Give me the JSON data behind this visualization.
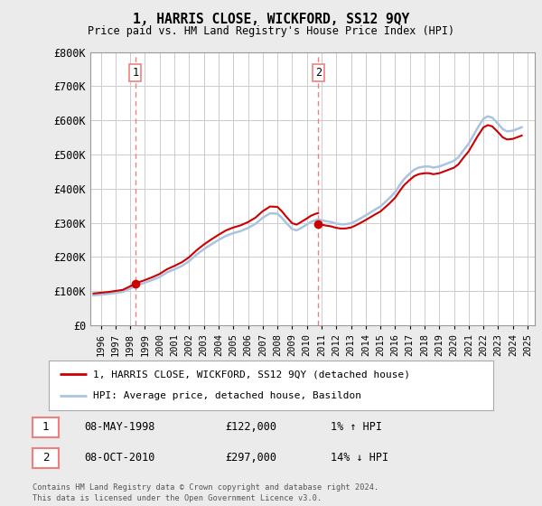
{
  "title": "1, HARRIS CLOSE, WICKFORD, SS12 9QY",
  "subtitle": "Price paid vs. HM Land Registry's House Price Index (HPI)",
  "legend_line1": "1, HARRIS CLOSE, WICKFORD, SS12 9QY (detached house)",
  "legend_line2": "HPI: Average price, detached house, Basildon",
  "sale1_date": "08-MAY-1998",
  "sale1_price": "£122,000",
  "sale1_hpi": "1% ↑ HPI",
  "sale2_date": "08-OCT-2010",
  "sale2_price": "£297,000",
  "sale2_hpi": "14% ↓ HPI",
  "footnote1": "Contains HM Land Registry data © Crown copyright and database right 2024.",
  "footnote2": "This data is licensed under the Open Government Licence v3.0.",
  "hpi_color": "#aac4e0",
  "price_color": "#cc0000",
  "sale_marker_color": "#cc0000",
  "vline_color": "#f08080",
  "bg_color": "#ebebeb",
  "plot_bg_color": "#ffffff",
  "grid_color": "#cccccc",
  "ylim": [
    0,
    800000
  ],
  "yticks": [
    0,
    100000,
    200000,
    300000,
    400000,
    500000,
    600000,
    700000,
    800000
  ],
  "ytick_labels": [
    "£0",
    "£100K",
    "£200K",
    "£300K",
    "£400K",
    "£500K",
    "£600K",
    "£700K",
    "£800K"
  ],
  "sale1_x": 1998.35,
  "sale1_y": 122000,
  "sale2_x": 2010.77,
  "sale2_y": 297000,
  "xmin": 1995.3,
  "xmax": 2025.5,
  "xticks": [
    1996,
    1997,
    1998,
    1999,
    2000,
    2001,
    2002,
    2003,
    2004,
    2005,
    2006,
    2007,
    2008,
    2009,
    2010,
    2011,
    2012,
    2013,
    2014,
    2015,
    2016,
    2017,
    2018,
    2019,
    2020,
    2021,
    2022,
    2023,
    2024,
    2025
  ],
  "years_hpi": [
    1995.5,
    1996.0,
    1996.5,
    1997.0,
    1997.5,
    1998.0,
    1998.5,
    1999.0,
    1999.5,
    2000.0,
    2000.5,
    2001.0,
    2001.5,
    2002.0,
    2002.5,
    2003.0,
    2003.5,
    2004.0,
    2004.5,
    2005.0,
    2005.5,
    2006.0,
    2006.5,
    2007.0,
    2007.5,
    2008.0,
    2008.3,
    2008.6,
    2009.0,
    2009.3,
    2009.6,
    2010.0,
    2010.3,
    2010.6,
    2010.77,
    2011.0,
    2011.3,
    2011.6,
    2012.0,
    2012.3,
    2012.6,
    2013.0,
    2013.3,
    2013.6,
    2014.0,
    2014.3,
    2014.6,
    2015.0,
    2015.3,
    2015.6,
    2016.0,
    2016.3,
    2016.6,
    2017.0,
    2017.3,
    2017.6,
    2018.0,
    2018.3,
    2018.6,
    2019.0,
    2019.3,
    2019.6,
    2020.0,
    2020.3,
    2020.6,
    2021.0,
    2021.3,
    2021.6,
    2022.0,
    2022.3,
    2022.6,
    2023.0,
    2023.3,
    2023.6,
    2024.0,
    2024.3,
    2024.6
  ],
  "hpi_values": [
    88000,
    90000,
    92000,
    95000,
    98000,
    108000,
    118000,
    125000,
    133000,
    142000,
    155000,
    164000,
    174000,
    188000,
    207000,
    223000,
    237000,
    250000,
    262000,
    270000,
    276000,
    285000,
    297000,
    315000,
    328000,
    327000,
    315000,
    300000,
    282000,
    278000,
    285000,
    295000,
    303000,
    308000,
    310000,
    308000,
    305000,
    303000,
    298000,
    296000,
    296000,
    299000,
    305000,
    312000,
    322000,
    330000,
    338000,
    348000,
    360000,
    372000,
    390000,
    410000,
    428000,
    445000,
    456000,
    462000,
    465000,
    465000,
    462000,
    465000,
    470000,
    475000,
    482000,
    492000,
    510000,
    532000,
    555000,
    578000,
    605000,
    612000,
    608000,
    590000,
    575000,
    568000,
    570000,
    575000,
    580000
  ]
}
